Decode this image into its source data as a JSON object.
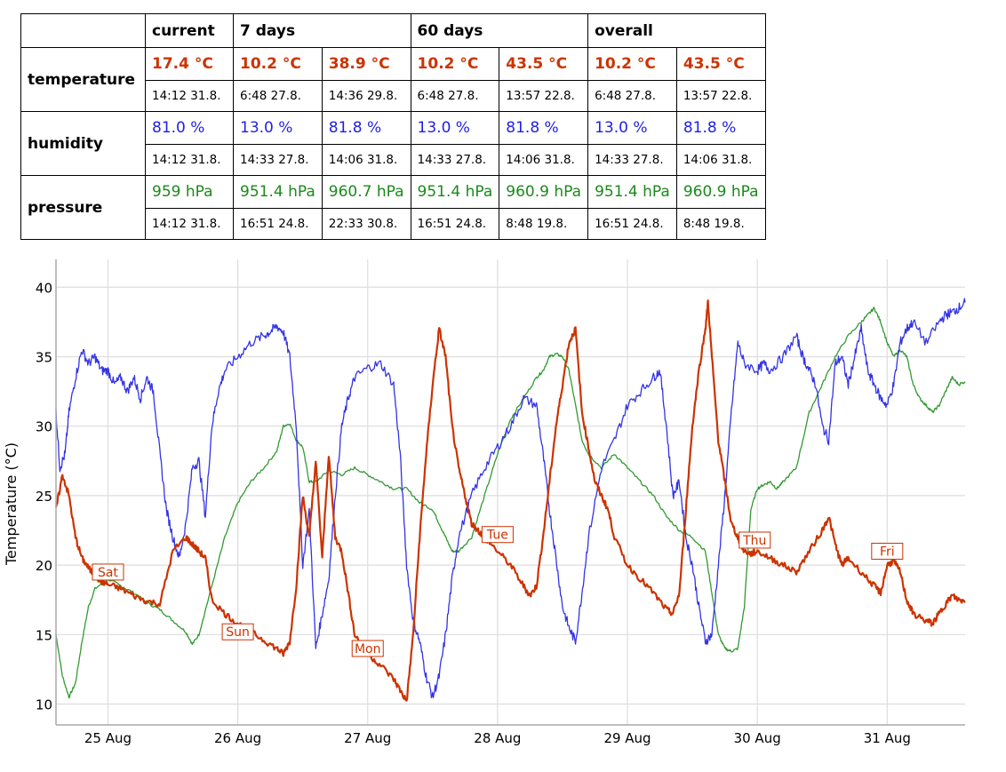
{
  "table": {
    "headers": [
      "current",
      "7 days",
      "60 days",
      "overall"
    ],
    "rows": [
      {
        "label": "temperature",
        "class": "c-temp",
        "values": [
          "17.4 °C",
          "10.2 °C",
          "38.9 °C",
          "10.2 °C",
          "43.5 °C",
          "10.2 °C",
          "43.5 °C"
        ],
        "times": [
          "14:12 31.8.",
          "6:48 27.8.",
          "14:36 29.8.",
          "6:48 27.8.",
          "13:57 22.8.",
          "6:48 27.8.",
          "13:57 22.8."
        ]
      },
      {
        "label": "humidity",
        "class": "c-hum",
        "values": [
          "81.0 %",
          "13.0 %",
          "81.8 %",
          "13.0 %",
          "81.8 %",
          "13.0 %",
          "81.8 %"
        ],
        "times": [
          "14:12 31.8.",
          "14:33 27.8.",
          "14:06 31.8.",
          "14:33 27.8.",
          "14:06 31.8.",
          "14:33 27.8.",
          "14:06 31.8."
        ]
      },
      {
        "label": "pressure",
        "class": "c-pres",
        "values": [
          "959 hPa",
          "951.4 hPa",
          "960.7 hPa",
          "951.4 hPa",
          "960.9 hPa",
          "951.4 hPa",
          "960.9 hPa"
        ],
        "times": [
          "14:12 31.8.",
          "16:51 24.8.",
          "22:33 30.8.",
          "16:51 24.8.",
          "8:48 19.8.",
          "16:51 24.8.",
          "8:48 19.8."
        ]
      }
    ]
  },
  "colors": {
    "temperature": "#cc3300",
    "humidity": "#3333e6",
    "pressure": "#339933",
    "grid": "#dddddd",
    "axis": "#aaaaaa"
  },
  "chart_data": {
    "type": "line",
    "ylabel": "Temperature (°C)",
    "xlabel": "",
    "ylim": [
      8.5,
      42
    ],
    "xlim": [
      24.6,
      31.6
    ],
    "yticks": [
      10,
      15,
      20,
      25,
      30,
      35,
      40
    ],
    "xticks": [
      {
        "x": 25,
        "label": "25 Aug"
      },
      {
        "x": 26,
        "label": "26 Aug"
      },
      {
        "x": 27,
        "label": "27 Aug"
      },
      {
        "x": 28,
        "label": "28 Aug"
      },
      {
        "x": 29,
        "label": "29 Aug"
      },
      {
        "x": 30,
        "label": "30 Aug"
      },
      {
        "x": 31,
        "label": "31 Aug"
      }
    ],
    "grid": true,
    "annotations": [
      {
        "label": "Sat",
        "x": 25.0,
        "y": 19.5
      },
      {
        "label": "Sun",
        "x": 26.0,
        "y": 15.2
      },
      {
        "label": "Mon",
        "x": 27.0,
        "y": 14.0
      },
      {
        "label": "Tue",
        "x": 28.0,
        "y": 22.2
      },
      {
        "label": "Thu",
        "x": 29.98,
        "y": 21.8
      },
      {
        "label": "Fri",
        "x": 31.0,
        "y": 21.0
      }
    ],
    "series": [
      {
        "key": "temperature",
        "x": [
          24.6,
          24.65,
          24.7,
          24.75,
          24.8,
          24.85,
          24.9,
          24.95,
          25.0,
          25.1,
          25.2,
          25.3,
          25.4,
          25.5,
          25.6,
          25.65,
          25.7,
          25.75,
          25.8,
          25.9,
          26.0,
          26.1,
          26.2,
          26.3,
          26.35,
          26.4,
          26.45,
          26.5,
          26.55,
          26.6,
          26.65,
          26.7,
          26.75,
          26.8,
          26.85,
          26.9,
          27.0,
          27.1,
          27.2,
          27.25,
          27.3,
          27.35,
          27.4,
          27.45,
          27.5,
          27.55,
          27.6,
          27.65,
          27.7,
          27.75,
          27.8,
          27.85,
          27.9,
          28.0,
          28.1,
          28.2,
          28.25,
          28.3,
          28.35,
          28.4,
          28.45,
          28.5,
          28.55,
          28.6,
          28.65,
          28.7,
          28.75,
          28.8,
          28.85,
          28.9,
          29.0,
          29.1,
          29.2,
          29.3,
          29.35,
          29.4,
          29.45,
          29.5,
          29.55,
          29.6,
          29.62,
          29.65,
          29.7,
          29.75,
          29.8,
          29.85,
          29.9,
          29.95,
          30.0,
          30.1,
          30.2,
          30.3,
          30.4,
          30.5,
          30.55,
          30.6,
          30.65,
          30.7,
          30.8,
          30.9,
          30.95,
          31.0,
          31.05,
          31.1,
          31.15,
          31.2,
          31.3,
          31.35,
          31.4,
          31.45,
          31.5,
          31.55,
          31.6
        ],
        "y": [
          24.0,
          26.5,
          25.0,
          22.0,
          20.5,
          19.8,
          19.2,
          18.8,
          18.6,
          18.3,
          17.8,
          17.4,
          17.2,
          21.0,
          22.0,
          21.5,
          21.0,
          20.5,
          17.5,
          16.5,
          15.8,
          15.2,
          14.6,
          14.0,
          13.6,
          14.5,
          18.5,
          25.0,
          22.0,
          27.5,
          20.5,
          28.0,
          22.0,
          21.0,
          18.0,
          15.0,
          13.6,
          12.8,
          11.8,
          11.0,
          10.2,
          15.0,
          22.0,
          28.0,
          33.0,
          37.0,
          35.0,
          30.0,
          27.0,
          25.0,
          23.0,
          22.5,
          22.0,
          21.0,
          20.0,
          18.5,
          17.8,
          18.5,
          22.0,
          26.0,
          30.0,
          33.0,
          36.0,
          37.0,
          31.0,
          28.5,
          26.0,
          25.0,
          24.0,
          22.0,
          20.0,
          19.0,
          18.0,
          16.8,
          16.5,
          18.0,
          24.0,
          30.0,
          34.0,
          37.0,
          38.9,
          35.0,
          29.0,
          26.0,
          23.0,
          22.0,
          21.0,
          20.8,
          21.0,
          20.5,
          20.0,
          19.5,
          21.0,
          22.5,
          23.5,
          21.5,
          20.0,
          20.5,
          19.5,
          18.5,
          18.0,
          20.0,
          20.3,
          19.5,
          17.5,
          16.5,
          16.0,
          15.8,
          16.5,
          17.2,
          17.8,
          17.5,
          17.4
        ]
      },
      {
        "key": "humidity",
        "x": [
          24.6,
          24.63,
          24.67,
          24.7,
          24.75,
          24.8,
          24.85,
          24.9,
          24.95,
          25.0,
          25.05,
          25.1,
          25.15,
          25.2,
          25.25,
          25.3,
          25.35,
          25.4,
          25.45,
          25.5,
          25.55,
          25.6,
          25.65,
          25.7,
          25.75,
          25.8,
          25.85,
          25.9,
          26.0,
          26.1,
          26.2,
          26.25,
          26.3,
          26.35,
          26.4,
          26.45,
          26.5,
          26.55,
          26.6,
          26.65,
          26.7,
          26.75,
          26.8,
          26.85,
          26.9,
          27.0,
          27.1,
          27.2,
          27.25,
          27.3,
          27.35,
          27.4,
          27.45,
          27.5,
          27.55,
          27.6,
          27.65,
          27.7,
          27.8,
          27.9,
          28.0,
          28.1,
          28.2,
          28.3,
          28.35,
          28.4,
          28.45,
          28.5,
          28.55,
          28.6,
          28.65,
          28.7,
          28.8,
          28.9,
          29.0,
          29.1,
          29.2,
          29.25,
          29.3,
          29.35,
          29.4,
          29.45,
          29.5,
          29.55,
          29.6,
          29.65,
          29.7,
          29.75,
          29.8,
          29.85,
          29.9,
          30.0,
          30.05,
          30.1,
          30.2,
          30.3,
          30.35,
          30.4,
          30.45,
          30.5,
          30.55,
          30.6,
          30.65,
          30.7,
          30.75,
          30.8,
          30.85,
          30.9,
          30.95,
          31.0,
          31.05,
          31.1,
          31.15,
          31.2,
          31.3,
          31.4,
          31.45,
          31.5,
          31.55,
          31.6
        ],
        "y": [
          31.0,
          27.0,
          28.0,
          31.0,
          33.5,
          35.5,
          34.5,
          35.0,
          34.0,
          34.0,
          33.0,
          33.5,
          32.5,
          33.5,
          32.0,
          33.5,
          32.5,
          28.0,
          24.0,
          22.0,
          20.5,
          23.0,
          27.0,
          27.5,
          23.5,
          30.0,
          32.5,
          34.0,
          35.0,
          36.0,
          36.5,
          36.8,
          37.2,
          36.8,
          35.0,
          30.0,
          20.0,
          24.0,
          14.0,
          16.5,
          19.0,
          25.0,
          30.0,
          32.0,
          33.5,
          34.2,
          34.5,
          33.0,
          28.0,
          20.0,
          16.0,
          14.5,
          12.0,
          10.5,
          12.0,
          15.0,
          19.0,
          22.0,
          25.0,
          27.0,
          28.5,
          30.0,
          32.0,
          31.5,
          28.0,
          24.0,
          20.5,
          17.0,
          15.5,
          14.5,
          18.0,
          22.0,
          27.0,
          29.0,
          31.5,
          32.5,
          33.5,
          34.0,
          30.0,
          25.0,
          26.0,
          22.0,
          20.0,
          17.0,
          14.5,
          15.0,
          20.0,
          25.0,
          31.0,
          36.0,
          34.5,
          34.0,
          34.5,
          34.0,
          35.0,
          36.5,
          35.0,
          34.0,
          33.0,
          30.0,
          29.0,
          34.5,
          35.0,
          33.0,
          35.0,
          37.0,
          34.0,
          33.0,
          32.0,
          31.5,
          33.0,
          36.0,
          37.0,
          37.5,
          36.0,
          37.5,
          38.0,
          38.2,
          38.5,
          38.9
        ]
      },
      {
        "key": "pressure",
        "x": [
          24.6,
          24.65,
          24.7,
          24.75,
          24.8,
          24.85,
          24.9,
          25.0,
          25.1,
          25.2,
          25.3,
          25.4,
          25.5,
          25.6,
          25.65,
          25.7,
          25.8,
          25.9,
          26.0,
          26.1,
          26.2,
          26.3,
          26.35,
          26.4,
          26.45,
          26.5,
          26.55,
          26.6,
          26.7,
          26.8,
          26.9,
          27.0,
          27.1,
          27.2,
          27.3,
          27.4,
          27.5,
          27.55,
          27.6,
          27.65,
          27.7,
          27.8,
          27.9,
          28.0,
          28.1,
          28.2,
          28.3,
          28.35,
          28.4,
          28.45,
          28.5,
          28.55,
          28.6,
          28.65,
          28.7,
          28.8,
          28.9,
          29.0,
          29.1,
          29.2,
          29.3,
          29.4,
          29.5,
          29.6,
          29.65,
          29.7,
          29.75,
          29.8,
          29.85,
          29.9,
          29.95,
          30.0,
          30.05,
          30.1,
          30.15,
          30.2,
          30.3,
          30.4,
          30.5,
          30.6,
          30.7,
          30.8,
          30.85,
          30.9,
          30.95,
          31.0,
          31.05,
          31.1,
          31.15,
          31.2,
          31.25,
          31.3,
          31.35,
          31.4,
          31.45,
          31.5,
          31.55,
          31.6
        ],
        "y": [
          15.0,
          12.0,
          10.5,
          11.5,
          14.5,
          17.0,
          18.3,
          19.0,
          18.5,
          18.0,
          17.3,
          16.8,
          16.0,
          15.2,
          14.3,
          15.0,
          18.5,
          22.0,
          24.5,
          26.0,
          27.0,
          28.2,
          30.0,
          30.2,
          29.0,
          28.5,
          26.0,
          26.0,
          26.8,
          26.5,
          27.0,
          26.5,
          26.0,
          25.5,
          25.5,
          24.5,
          24.0,
          23.0,
          22.0,
          21.0,
          21.0,
          22.0,
          25.0,
          28.0,
          30.5,
          32.0,
          33.5,
          34.0,
          35.0,
          35.2,
          35.0,
          34.0,
          31.5,
          29.0,
          28.0,
          27.0,
          28.0,
          27.0,
          26.0,
          25.0,
          23.5,
          22.5,
          22.0,
          21.0,
          18.0,
          15.0,
          14.0,
          13.8,
          14.0,
          17.0,
          24.0,
          25.5,
          25.8,
          26.0,
          25.5,
          26.0,
          27.0,
          31.0,
          33.0,
          35.0,
          36.5,
          37.5,
          38.0,
          38.5,
          37.5,
          36.0,
          35.0,
          35.5,
          35.0,
          33.0,
          32.0,
          31.5,
          31.0,
          31.5,
          32.5,
          33.5,
          33.0,
          33.2
        ]
      }
    ]
  }
}
